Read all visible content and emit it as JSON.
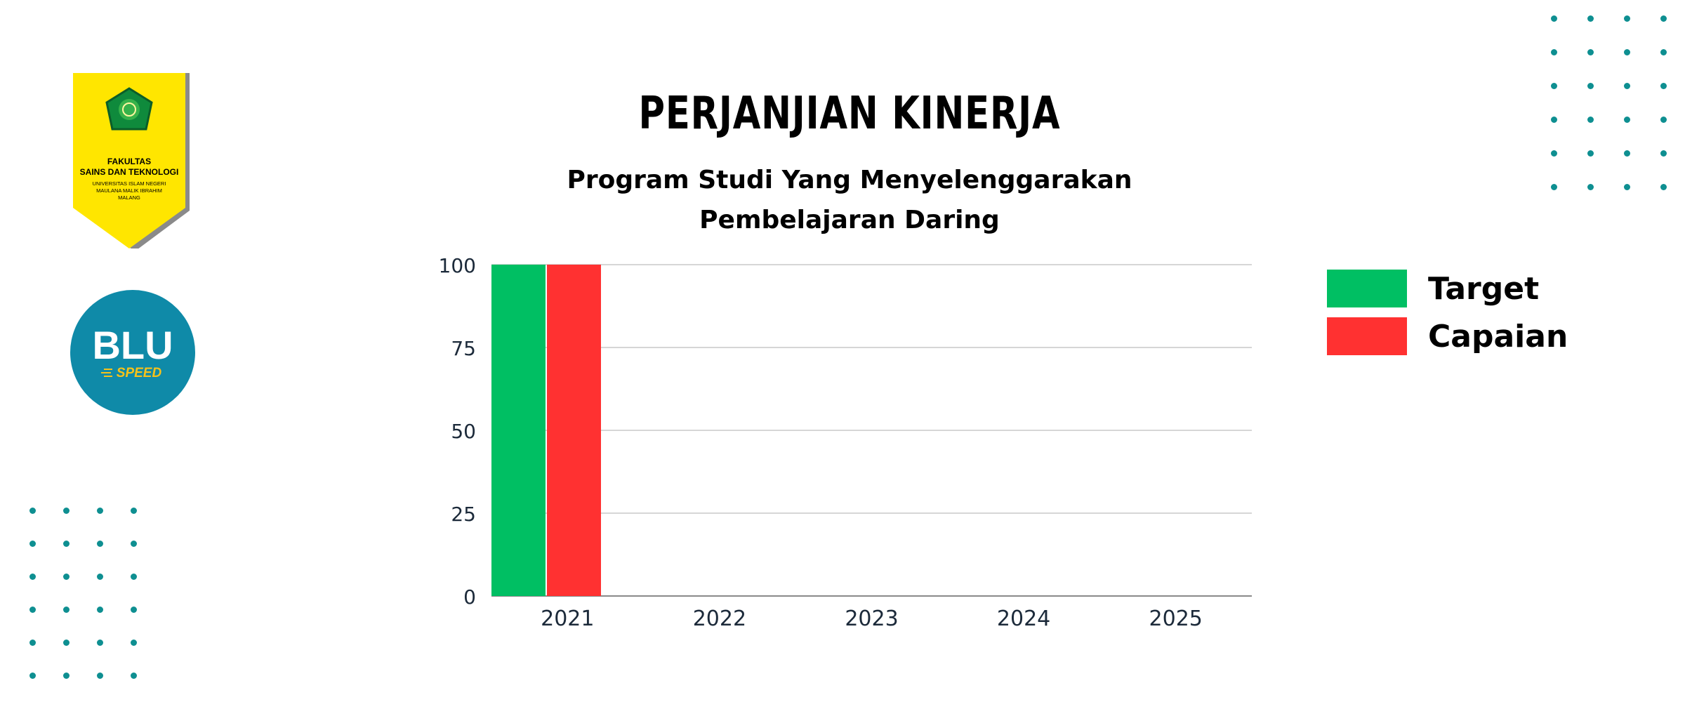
{
  "header": {
    "title": "PERJANJIAN KINERJA",
    "subtitle_line1": "Program Studi Yang Menyelenggarakan",
    "subtitle_line2": "Pembelajaran Daring"
  },
  "logos": {
    "fakultas": {
      "line1": "FAKULTAS",
      "line2": "SAINS DAN TEKNOLOGI",
      "line3": "UNIVERSITAS ISLAM NEGERI",
      "line4": "MAULANA MALIK IBRAHIM",
      "line5": "MALANG",
      "color": "#ffe600"
    },
    "blu": {
      "main": "BLU",
      "sub": "SPEED",
      "color": "#0f8aa8"
    }
  },
  "decor": {
    "dot_color": "#0e8f91"
  },
  "chart_data": {
    "type": "bar",
    "categories": [
      "2021",
      "2022",
      "2023",
      "2024",
      "2025"
    ],
    "series": [
      {
        "name": "Target",
        "values": [
          100,
          0,
          0,
          0,
          0
        ],
        "color": "#00bf63"
      },
      {
        "name": "Capaian",
        "values": [
          100,
          0,
          0,
          0,
          0
        ],
        "color": "#ff3131"
      }
    ],
    "ylim": [
      0,
      100
    ],
    "yticks": [
      0,
      25,
      50,
      75,
      100
    ],
    "xlabel": "",
    "ylabel": "",
    "grid": true,
    "legend_position": "right"
  }
}
